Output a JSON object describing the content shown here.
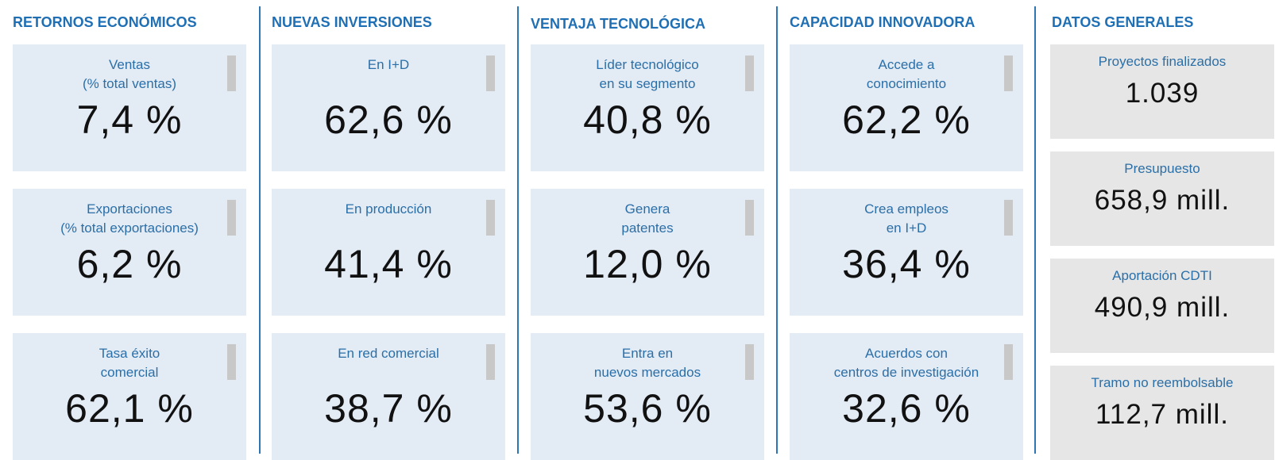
{
  "columns": [
    {
      "title": "RETORNOS ECONÓMICOS",
      "cards": [
        {
          "label": [
            "Ventas",
            "(% total ventas)"
          ],
          "value": "7,4 %"
        },
        {
          "label": [
            "Exportaciones",
            "(% total exportaciones)"
          ],
          "value": "6,2 %"
        },
        {
          "label": [
            "Tasa éxito",
            "comercial"
          ],
          "value": "62,1 %"
        }
      ]
    },
    {
      "title": "NUEVAS INVERSIONES",
      "cards": [
        {
          "label": [
            "En I+D"
          ],
          "value": "62,6 %"
        },
        {
          "label": [
            "En producción"
          ],
          "value": "41,4 %"
        },
        {
          "label": [
            "En red comercial"
          ],
          "value": "38,7 %"
        }
      ]
    },
    {
      "title": "VENTAJA TECNOLÓGICA",
      "cards": [
        {
          "label": [
            "Líder tecnológico",
            "en su segmento"
          ],
          "value": "40,8 %"
        },
        {
          "label": [
            "Genera",
            "patentes"
          ],
          "value": "12,0 %"
        },
        {
          "label": [
            "Entra en",
            "nuevos mercados"
          ],
          "value": "53,6 %"
        }
      ]
    },
    {
      "title": "CAPACIDAD INNOVADORA",
      "cards": [
        {
          "label": [
            "Accede a",
            "conocimiento"
          ],
          "value": "62,2 %"
        },
        {
          "label": [
            "Crea empleos",
            "en I+D"
          ],
          "value": "36,4 %"
        },
        {
          "label": [
            "Acuerdos con",
            "centros de investigación"
          ],
          "value": "32,6 %"
        }
      ]
    },
    {
      "title": "DATOS GENERALES",
      "cards": [
        {
          "label": [
            "Proyectos finalizados"
          ],
          "value": "1.039"
        },
        {
          "label": [
            "Presupuesto"
          ],
          "value": "658,9 mill."
        },
        {
          "label": [
            "Aportación CDTI"
          ],
          "value": "490,9 mill."
        },
        {
          "label": [
            "Tramo no reembolsable"
          ],
          "value": "112,7 mill."
        }
      ]
    }
  ]
}
